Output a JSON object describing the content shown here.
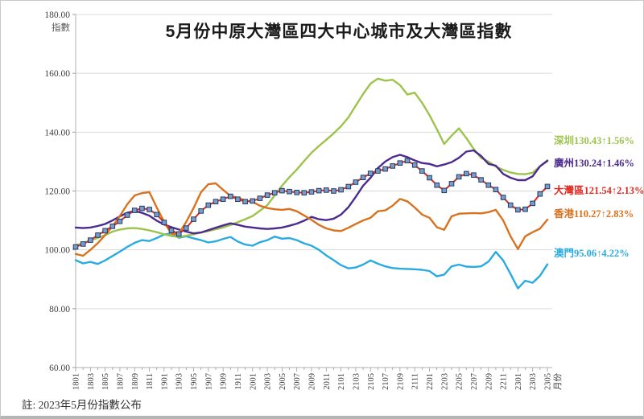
{
  "title": "5月份中原大灣區四大中心城市及大灣區指數",
  "note": "註: 2023年5月份指數公布",
  "y_axis": {
    "unit_label": "指數",
    "tick_labels": [
      "180.00",
      "160.00",
      "140.00",
      "120.00",
      "100.00",
      "80.00",
      "60.00"
    ]
  },
  "x_axis": {
    "unit_label": "月份",
    "visible_tick_labels": [
      "1801",
      "1803",
      "1805",
      "1807",
      "1809",
      "1811",
      "1901",
      "1903",
      "1905",
      "1907",
      "1909",
      "1911",
      "2001",
      "2003",
      "2005",
      "2007",
      "2009",
      "2011",
      "2101",
      "2103",
      "2105",
      "2107",
      "2109",
      "2111",
      "2201",
      "2203",
      "2205",
      "2207",
      "2209",
      "2211",
      "2301",
      "2303",
      "2305"
    ]
  },
  "chart_data": {
    "type": "line",
    "title": "5月份中原大灣區四大中心城市及大灣區指數",
    "xlabel": "月份",
    "ylabel": "指數",
    "ylim": [
      60,
      180
    ],
    "y_tick_step": 20,
    "grid": true,
    "legend_position": "right-of-line-ends",
    "x": [
      "1801",
      "1802",
      "1803",
      "1804",
      "1805",
      "1806",
      "1807",
      "1808",
      "1809",
      "1810",
      "1811",
      "1812",
      "1901",
      "1902",
      "1903",
      "1904",
      "1905",
      "1906",
      "1907",
      "1908",
      "1909",
      "1910",
      "1911",
      "1912",
      "2001",
      "2002",
      "2003",
      "2004",
      "2005",
      "2006",
      "2007",
      "2008",
      "2009",
      "2010",
      "2011",
      "2012",
      "2101",
      "2102",
      "2103",
      "2104",
      "2105",
      "2106",
      "2107",
      "2108",
      "2109",
      "2110",
      "2111",
      "2112",
      "2201",
      "2202",
      "2203",
      "2204",
      "2205",
      "2206",
      "2207",
      "2208",
      "2209",
      "2210",
      "2211",
      "2212",
      "2301",
      "2302",
      "2303",
      "2304",
      "2305"
    ],
    "series": [
      {
        "name": "深圳",
        "color": "#9cc34b",
        "last_value": "130.43",
        "change": "↑1.56%",
        "display_label": "深圳130.43↑1.56%",
        "values": [
          101.5,
          102.3,
          103.2,
          104.1,
          105.0,
          106.2,
          106.9,
          107.3,
          107.4,
          107.1,
          106.6,
          106.0,
          105.3,
          104.7,
          104.4,
          104.8,
          105.3,
          105.9,
          106.4,
          107.0,
          107.6,
          108.4,
          109.4,
          110.4,
          111.5,
          113.3,
          115.2,
          118.5,
          121.8,
          124.7,
          127.3,
          130.2,
          133.0,
          135.3,
          137.4,
          139.6,
          142.0,
          145.0,
          149.0,
          153.0,
          156.5,
          158.2,
          157.5,
          157.8,
          156.0,
          152.8,
          153.4,
          150.0,
          145.8,
          141.0,
          136.0,
          138.8,
          141.3,
          138.0,
          134.3,
          131.3,
          130.0,
          128.3,
          127.2,
          126.3,
          125.8,
          125.7,
          126.2,
          128.4,
          130.43
        ]
      },
      {
        "name": "廣州",
        "color": "#4d2a8f",
        "last_value": "130.24",
        "change": "↑1.46%",
        "display_label": "廣州130.24↑1.46%",
        "values": [
          107.6,
          107.4,
          107.6,
          108.1,
          108.8,
          110.0,
          111.4,
          112.6,
          113.2,
          112.6,
          111.6,
          109.9,
          108.6,
          107.7,
          106.9,
          106.2,
          105.6,
          105.9,
          106.7,
          107.5,
          108.3,
          109.0,
          108.5,
          107.9,
          107.6,
          107.3,
          107.1,
          107.3,
          107.6,
          108.2,
          108.9,
          109.9,
          111.2,
          110.4,
          110.1,
          110.6,
          112.0,
          114.5,
          118.0,
          121.8,
          124.5,
          127.8,
          130.0,
          131.5,
          132.3,
          131.5,
          130.4,
          129.5,
          129.2,
          128.4,
          129.0,
          129.8,
          131.3,
          133.4,
          133.8,
          131.9,
          129.2,
          128.6,
          125.8,
          124.5,
          123.7,
          123.7,
          125.0,
          128.4,
          130.24
        ]
      },
      {
        "name": "大灣區",
        "color": "#e02a22",
        "marker": "square",
        "marker_fill": "#7a9cc6",
        "marker_stroke": "#1f3b66",
        "last_value": "121.54",
        "change": "↑2.13%",
        "display_label": "大灣區121.54↑2.13%",
        "values": [
          101.0,
          102.0,
          103.3,
          105.0,
          106.5,
          108.0,
          109.7,
          111.8,
          113.4,
          114.1,
          113.7,
          112.0,
          109.3,
          106.6,
          105.4,
          107.4,
          110.4,
          113.2,
          115.2,
          116.4,
          117.2,
          118.2,
          117.2,
          116.4,
          116.6,
          117.5,
          118.6,
          119.4,
          120.1,
          119.8,
          119.5,
          119.4,
          119.7,
          120.1,
          120.3,
          120.0,
          120.4,
          121.5,
          123.0,
          124.6,
          126.0,
          126.8,
          127.5,
          128.5,
          129.5,
          130.3,
          128.8,
          126.8,
          124.5,
          122.0,
          120.2,
          122.5,
          124.8,
          125.9,
          125.4,
          123.8,
          122.0,
          120.5,
          117.8,
          115.2,
          113.6,
          113.8,
          115.8,
          119.0,
          121.54
        ]
      },
      {
        "name": "香港",
        "color": "#d9721e",
        "last_value": "110.27",
        "change": "↑2.83%",
        "display_label": "香港110.27↑2.83%",
        "values": [
          98.6,
          98.0,
          100.0,
          102.3,
          105.0,
          108.0,
          111.5,
          115.5,
          118.5,
          119.3,
          119.6,
          114.4,
          109.5,
          105.4,
          105.5,
          109.5,
          114.2,
          119.6,
          122.3,
          122.6,
          120.4,
          118.3,
          117.7,
          116.8,
          116.3,
          115.0,
          114.2,
          113.8,
          113.6,
          113.9,
          113.1,
          111.7,
          110.2,
          108.5,
          107.3,
          106.6,
          106.4,
          107.5,
          108.8,
          110.0,
          110.9,
          113.1,
          113.4,
          115.0,
          117.3,
          116.5,
          114.4,
          112.0,
          110.9,
          107.7,
          106.8,
          111.4,
          112.3,
          112.4,
          112.5,
          112.4,
          112.8,
          113.6,
          110.0,
          104.6,
          100.3,
          104.6,
          106.0,
          107.2,
          110.27
        ]
      },
      {
        "name": "澳門",
        "color": "#29abe2",
        "last_value": "95.06",
        "change": "↑4.22%",
        "display_label": "澳門95.06↑4.22%",
        "values": [
          96.5,
          95.4,
          95.9,
          95.2,
          96.4,
          97.9,
          99.4,
          101.0,
          102.4,
          103.3,
          103.0,
          104.0,
          105.2,
          105.6,
          104.1,
          104.6,
          103.9,
          103.3,
          102.5,
          102.9,
          103.7,
          104.4,
          102.8,
          101.8,
          101.4,
          102.6,
          103.3,
          104.5,
          103.8,
          104.0,
          103.3,
          102.2,
          101.4,
          100.0,
          98.1,
          96.5,
          94.8,
          93.7,
          94.0,
          95.0,
          96.4,
          95.3,
          94.4,
          93.8,
          93.6,
          93.5,
          93.4,
          93.2,
          92.8,
          91.0,
          91.6,
          94.4,
          95.0,
          94.3,
          94.2,
          94.4,
          96.0,
          99.3,
          96.4,
          91.8,
          86.9,
          89.5,
          88.8,
          91.2,
          95.06
        ]
      }
    ]
  }
}
